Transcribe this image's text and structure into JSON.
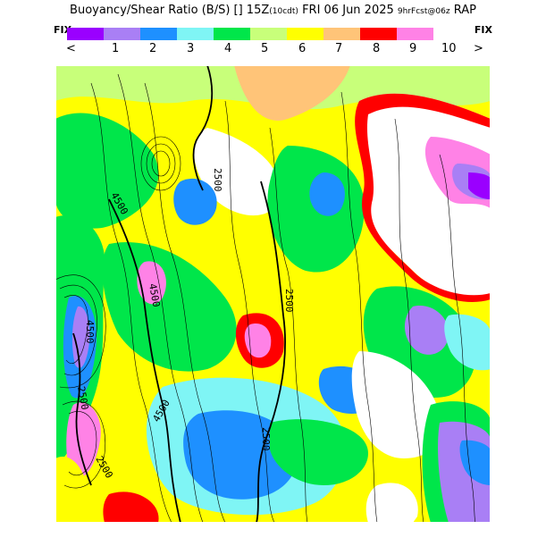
{
  "header": {
    "title_main": "Buoyancy/Shear Ratio (B/S) [] 15Z",
    "title_valid": "(10cdt)",
    "title_date": "FRI 06 Jun 2025",
    "title_fcst": "9hrFcst@06z",
    "title_model": "RAP"
  },
  "nav": {
    "fix_left": "FIX",
    "fix_right": "FIX",
    "prev_symbol": "<",
    "next_symbol": ">"
  },
  "legend": {
    "colors": [
      "#9a00ff",
      "#a97ff5",
      "#1e90ff",
      "#7ff5f5",
      "#00e64a",
      "#c8ff7a",
      "#ffff00",
      "#ffc478",
      "#ff0000",
      "#ff82e6"
    ],
    "tick_labels": [
      "1",
      "2",
      "3",
      "4",
      "5",
      "6",
      "7",
      "8",
      "9",
      "10"
    ]
  },
  "map": {
    "contour_labels": [
      "2500",
      "4500",
      "2500",
      "4500",
      "4500",
      "2500",
      "4500",
      "2500",
      "2500"
    ]
  }
}
